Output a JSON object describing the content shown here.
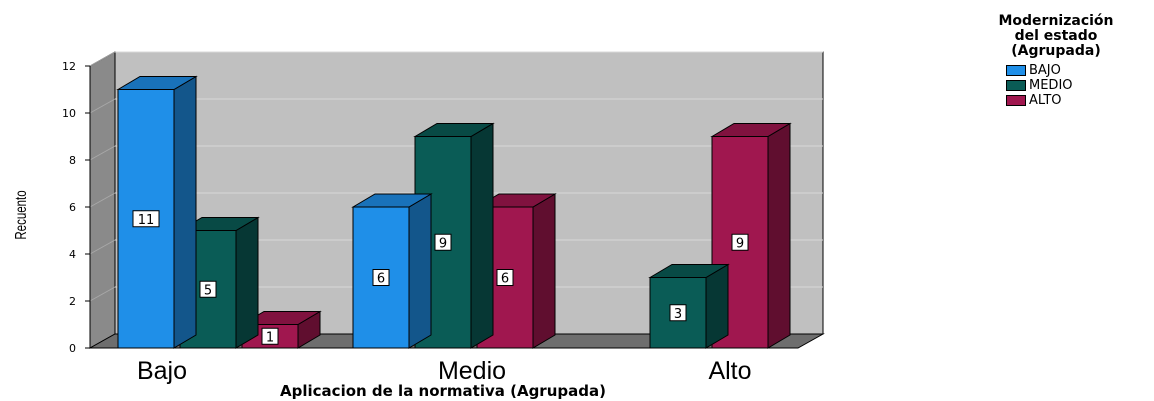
{
  "chart_data": {
    "type": "bar",
    "style": "3d-clustered",
    "categories": [
      "Bajo",
      "Medio",
      "Alto"
    ],
    "series": [
      {
        "name": "BAJO",
        "color": "#1f8fe8",
        "values": [
          11,
          6,
          0
        ]
      },
      {
        "name": "MEDIO",
        "color": "#0a5c56",
        "values": [
          5,
          9,
          3
        ]
      },
      {
        "name": "ALTO",
        "color": "#a0174f",
        "values": [
          1,
          6,
          9
        ]
      }
    ],
    "xlabel": "Aplicacion de la normativa (Agrupada)",
    "ylabel": "Recuento",
    "ylim": [
      0,
      12
    ],
    "yticks": [
      0,
      2,
      4,
      6,
      8,
      10,
      12
    ],
    "grid": true,
    "data_labels": true,
    "legend": {
      "position": "top-right",
      "title_lines": [
        "Modernización",
        "del estado",
        "(Agrupada)"
      ]
    },
    "colors": {
      "wall": "#c0c0c0",
      "floor": "#6e6e6e",
      "side_wall": "#8a8a8a"
    }
  }
}
